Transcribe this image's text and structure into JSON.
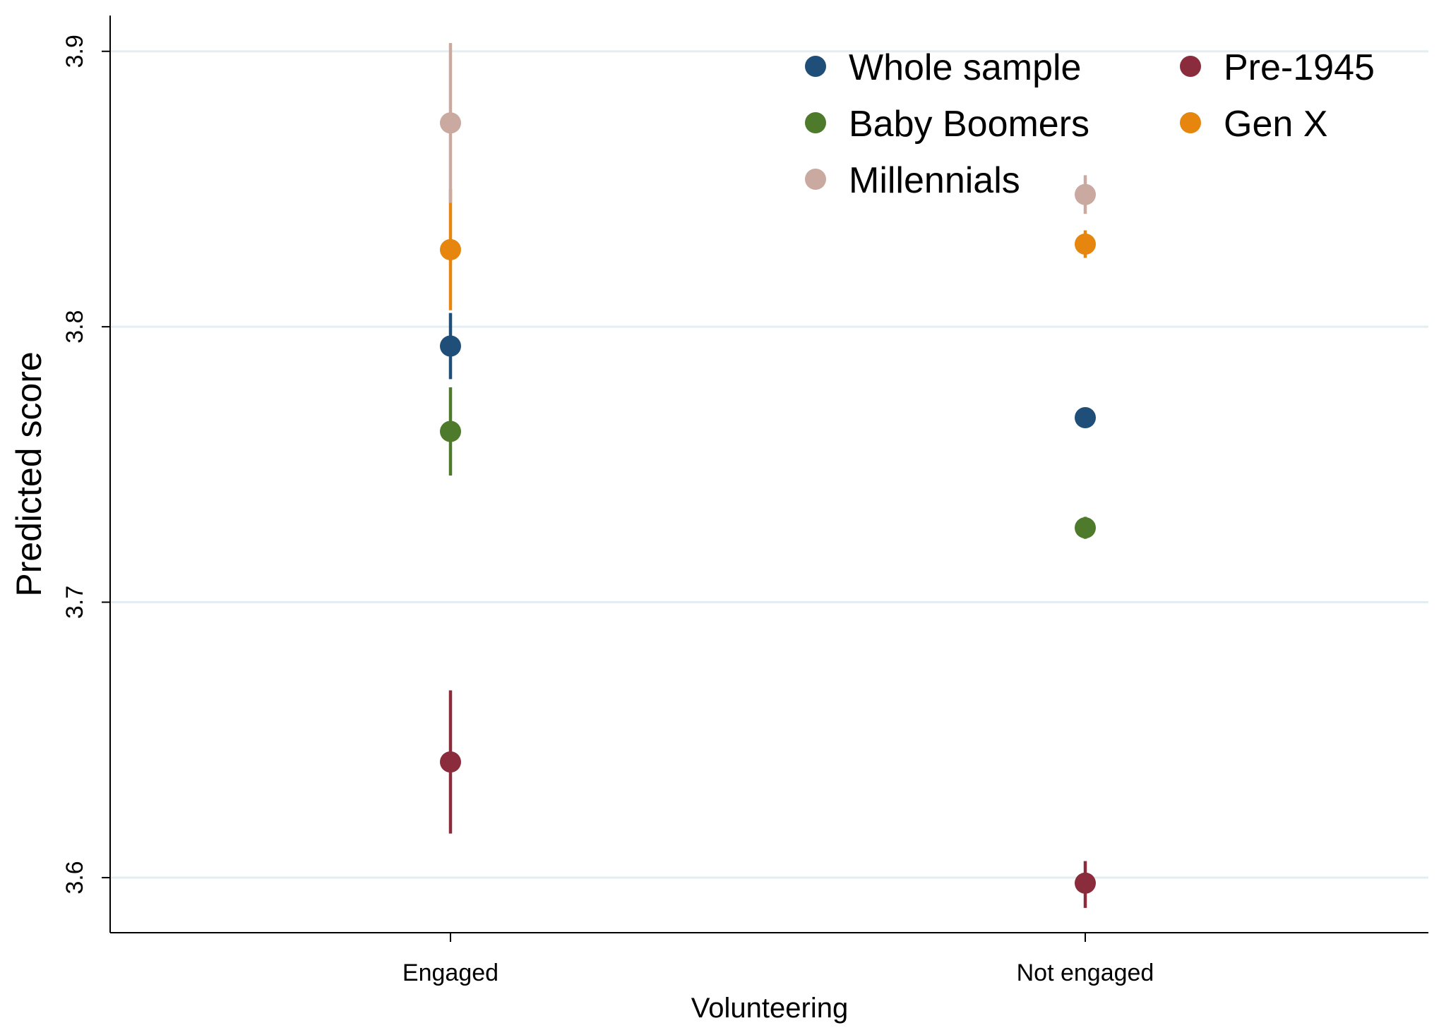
{
  "chart_data": {
    "type": "scatter",
    "title": "",
    "xlabel": "Volunteering",
    "ylabel": "Predicted score",
    "ylim": [
      3.58,
      3.913
    ],
    "yticks": [
      "3.6",
      "3.7",
      "3.8",
      "3.9"
    ],
    "ytick_values": [
      3.6,
      3.7,
      3.8,
      3.9
    ],
    "grid": true,
    "legend_position": "top-right",
    "categories": [
      "Engaged",
      "Not engaged"
    ],
    "series": [
      {
        "name": "Whole sample",
        "color": "#1f4e79",
        "values": [
          3.793,
          3.767
        ],
        "ci_low": [
          3.781,
          3.764
        ],
        "ci_high": [
          3.805,
          3.77
        ]
      },
      {
        "name": "Pre-1945",
        "color": "#8b2c3c",
        "values": [
          3.642,
          3.598
        ],
        "ci_low": [
          3.616,
          3.589
        ],
        "ci_high": [
          3.668,
          3.606
        ]
      },
      {
        "name": "Baby Boomers",
        "color": "#4e7a2b",
        "values": [
          3.762,
          3.727
        ],
        "ci_low": [
          3.746,
          3.723
        ],
        "ci_high": [
          3.778,
          3.731
        ]
      },
      {
        "name": "Gen X",
        "color": "#e6860e",
        "values": [
          3.828,
          3.83
        ],
        "ci_low": [
          3.806,
          3.825
        ],
        "ci_high": [
          3.85,
          3.835
        ]
      },
      {
        "name": "Millennials",
        "color": "#c9a9a0",
        "values": [
          3.874,
          3.848
        ],
        "ci_low": [
          3.845,
          3.841
        ],
        "ci_high": [
          3.903,
          3.855
        ]
      }
    ]
  }
}
